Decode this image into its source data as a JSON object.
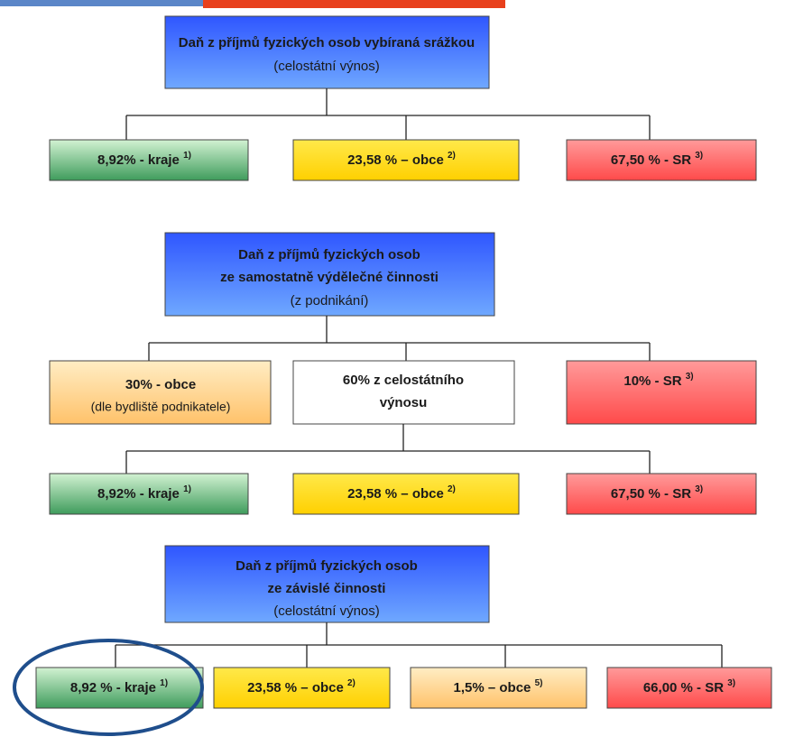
{
  "sections": [
    {
      "title": [
        "Daň z příjmů fyzických osob vybíraná srážkou",
        "(celostátní výnos)"
      ],
      "boxes": [
        {
          "label": "8,92% - kraje",
          "note": "1)"
        },
        {
          "label": "23,58 % – obce",
          "note": "2)"
        },
        {
          "label": "67,50 % - SR",
          "note": "3)"
        }
      ]
    },
    {
      "title": [
        "Daň z příjmů fyzických osob",
        "ze samostatně výdělečné činnosti",
        "(z podnikání)"
      ],
      "boxes": [
        {
          "lines": [
            "30% - obce",
            "(dle bydliště podnikatele)"
          ]
        },
        {
          "lines": [
            "60% z celostátního",
            "výnosu"
          ]
        },
        {
          "label": "10% - SR",
          "note": "3)"
        }
      ],
      "sub_boxes": [
        {
          "label": "8,92% - kraje",
          "note": "1)"
        },
        {
          "label": "23,58 % – obce",
          "note": "2)"
        },
        {
          "label": "67,50 % - SR",
          "note": "3)"
        }
      ]
    },
    {
      "title": [
        "Daň z příjmů fyzických osob",
        "ze závislé činnosti",
        "(celostátní výnos)"
      ],
      "boxes": [
        {
          "label": "8,92 % - kraje",
          "note": "1)"
        },
        {
          "label": "23,58 % – obce",
          "note": "2)"
        },
        {
          "label": "1,5% – obce",
          "note": "5)"
        },
        {
          "label": "66,00 % - SR",
          "note": "3)"
        }
      ]
    }
  ]
}
